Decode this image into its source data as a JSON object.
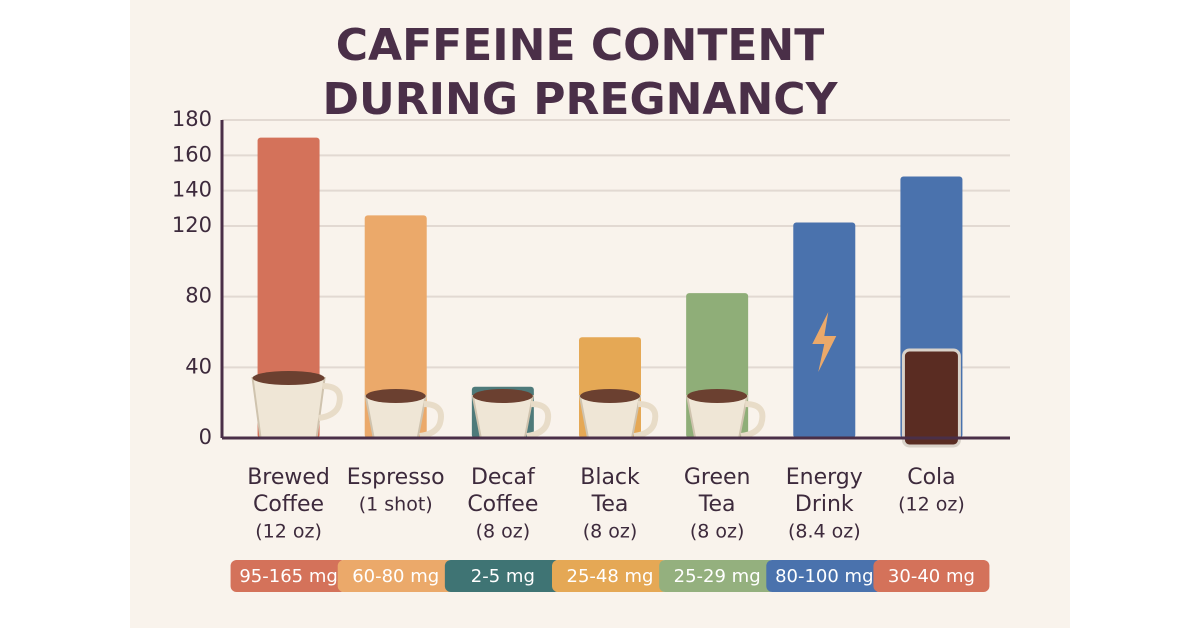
{
  "chart_data": {
    "type": "bar",
    "title": [
      "CAFFEINE CONTENT",
      "DURING PREGNANCY"
    ],
    "categories": [
      [
        "Brewed",
        "Coffee",
        "(12 oz)"
      ],
      [
        "Espresso",
        "(1 shot)"
      ],
      [
        "Decaf",
        "Coffee",
        "(8 oz)"
      ],
      [
        "Black",
        "Tea",
        "(8 oz)"
      ],
      [
        "Green",
        "Tea",
        "(8 oz)"
      ],
      [
        "Energy",
        "Drink",
        "(8.4 oz)"
      ],
      [
        "Cola",
        "(12 oz)"
      ]
    ],
    "values": [
      170,
      126,
      29,
      57,
      82,
      122,
      148
    ],
    "colors": [
      "#d4725a",
      "#eba96a",
      "#4e7a7a",
      "#e5a855",
      "#8fae78",
      "#4a72ad",
      "#4a72ad"
    ],
    "ranges": [
      "95-165 mg",
      "60-80 mg",
      "2-5 mg",
      "25-48 mg",
      "25-29 mg",
      "80-100 mg",
      "30-40 mg"
    ],
    "range_colors": [
      "#d4725a",
      "#eba96a",
      "#3f7474",
      "#e5a855",
      "#94b07e",
      "#4a72ad",
      "#d4725a"
    ],
    "ylim": [
      0,
      180
    ],
    "yticks": [
      0,
      40,
      80,
      120,
      140,
      160,
      180
    ],
    "grid": true
  }
}
